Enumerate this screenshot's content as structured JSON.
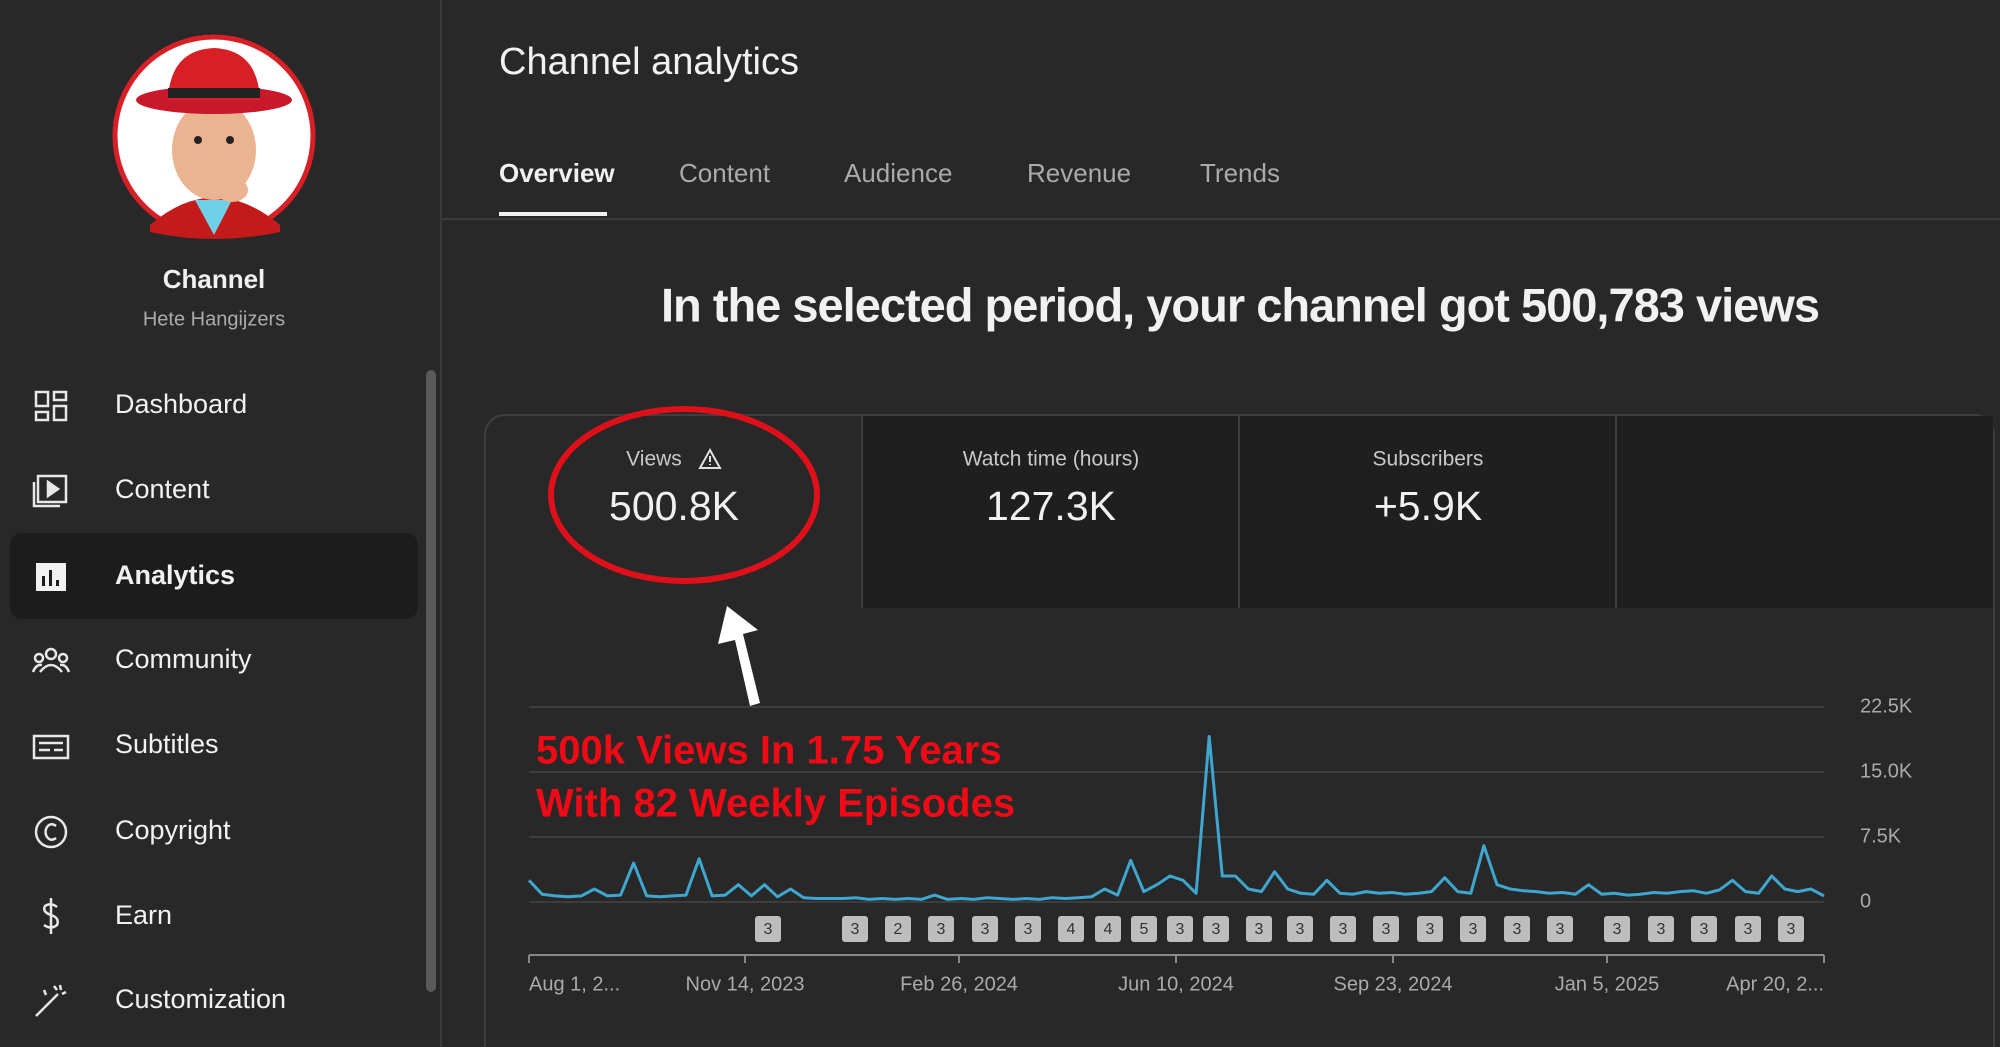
{
  "sidebar": {
    "channel_title": "Channel",
    "channel_name": "Hete Hangijzers",
    "nav": [
      "Dashboard",
      "Content",
      "Analytics",
      "Community",
      "Subtitles",
      "Copyright",
      "Earn",
      "Customization"
    ]
  },
  "header": {
    "title": "Channel analytics",
    "tabs": [
      "Overview",
      "Content",
      "Audience",
      "Revenue",
      "Trends"
    ]
  },
  "headline": "In the selected period, your channel got 500,783 views",
  "metrics": [
    {
      "label": "Views",
      "value": "500.8K"
    },
    {
      "label": "Watch time (hours)",
      "value": "127.3K"
    },
    {
      "label": "Subscribers",
      "value": "+5.9K"
    }
  ],
  "annotation": [
    "500k Views In 1.75 Years",
    "With 82 Weekly Episodes"
  ],
  "chart_data": {
    "type": "line",
    "color": "#3ea6cf",
    "values": [
      2500,
      900,
      700,
      600,
      700,
      1500,
      700,
      800,
      4500,
      700,
      600,
      700,
      800,
      5000,
      700,
      800,
      2000,
      700,
      2000,
      600,
      1500,
      500,
      400,
      400,
      400,
      500,
      300,
      400,
      300,
      400,
      300,
      800,
      300,
      400,
      300,
      500,
      400,
      300,
      400,
      300,
      500,
      400,
      500,
      600,
      1500,
      800,
      4800,
      1200,
      2000,
      3000,
      2500,
      1000,
      19100,
      3000,
      3000,
      1500,
      1200,
      3500,
      1500,
      1000,
      900,
      2500,
      1000,
      900,
      1200,
      1000,
      1100,
      900,
      1000,
      1200,
      2800,
      1200,
      1000,
      6500,
      2000,
      1500,
      1300,
      1200,
      1000,
      1100,
      900,
      2000,
      900,
      1000,
      800,
      900,
      1100,
      1000,
      1200,
      1300,
      1000,
      1400,
      2500,
      1200,
      1000,
      3000,
      1500,
      1200,
      1500,
      700
    ],
    "ylim": [
      0,
      22500
    ],
    "yticks": [
      0,
      {
        "value": 7500,
        "label": "7.5K"
      },
      {
        "value": 15000,
        "label": "15.0K"
      },
      {
        "value": 22500,
        "label": "22.5K"
      }
    ],
    "grid": true,
    "x_labels": [
      "Aug 1, 2...",
      "Nov 14, 2023",
      "Feb 26, 2024",
      "Jun 10, 2024",
      "Sep 23, 2024",
      "Jan 5, 2025",
      "Apr 20, 2..."
    ],
    "episode_markers": [
      "3",
      "3",
      "2",
      "3",
      "3",
      "3",
      "4",
      "4",
      "5",
      "3",
      "3",
      "3",
      "3",
      "3",
      "3",
      "3",
      "3",
      "3",
      "3",
      "3",
      "3",
      "3",
      "3",
      "3"
    ]
  }
}
